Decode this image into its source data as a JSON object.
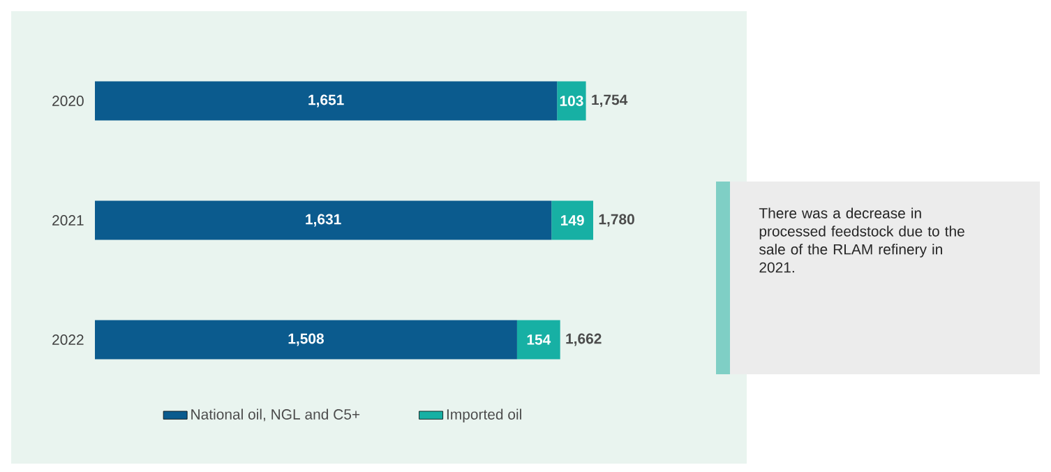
{
  "chart_data": {
    "type": "bar",
    "orientation": "horizontal",
    "stacked": true,
    "categories": [
      "2020",
      "2021",
      "2022"
    ],
    "series": [
      {
        "name": "National oil, NGL and C5+",
        "color": "#0b5b8e",
        "values": [
          1651,
          1631,
          1508
        ],
        "value_labels": [
          "1,651",
          "1,631",
          "1,508"
        ]
      },
      {
        "name": "Imported oil",
        "color": "#17b0a4",
        "values": [
          103,
          149,
          154
        ],
        "value_labels": [
          "103",
          "149",
          "154"
        ]
      }
    ],
    "totals": [
      "1,754",
      "1,780",
      "1,662"
    ],
    "legend": "bottom",
    "annotations": [
      "There was a decrease in processed feedstock due to the sale of the RLAM refinery in 2021."
    ]
  }
}
